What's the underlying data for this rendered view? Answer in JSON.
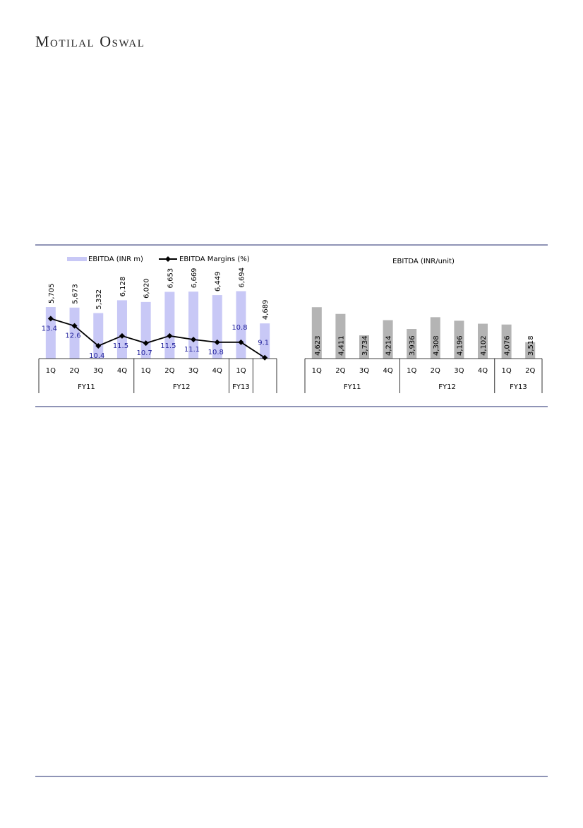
{
  "header": {
    "logo": "Motilal Oswal"
  },
  "chart_data": [
    {
      "type": "combo",
      "groups": [
        {
          "name": "FY11",
          "categories": [
            "1Q",
            "2Q",
            "3Q",
            "4Q"
          ]
        },
        {
          "name": "FY12",
          "categories": [
            "1Q",
            "2Q",
            "3Q",
            "4Q"
          ]
        },
        {
          "name": "FY13",
          "categories": [
            "1Q"
          ]
        },
        {
          "name": null,
          "categories": [
            null
          ]
        }
      ],
      "series": [
        {
          "name": "EBITDA (INR m)",
          "type": "bar",
          "color": "#c8c8f6",
          "values": [
            5705,
            5673,
            5332,
            6128,
            6020,
            6653,
            6669,
            6449,
            6694,
            4689
          ],
          "value_labels": [
            "5,705",
            "5,673",
            "5,332",
            "6,128",
            "6,020",
            "6,653",
            "6,669",
            "6,449",
            "6,694",
            "4,689"
          ]
        },
        {
          "name": "EBITDA Margins (%)",
          "type": "line",
          "axis": "y2",
          "color": "#000000",
          "values": [
            13.4,
            12.6,
            10.4,
            11.5,
            10.7,
            11.5,
            11.1,
            10.8,
            10.8,
            9.1
          ]
        }
      ],
      "ylim": [
        2500,
        9000
      ],
      "y2lim": [
        9,
        20.5
      ],
      "legend": "top"
    },
    {
      "type": "bar",
      "title": "EBITDA (INR/unit)",
      "groups": [
        {
          "name": "FY11",
          "categories": [
            "1Q",
            "2Q",
            "3Q",
            "4Q"
          ]
        },
        {
          "name": "FY12",
          "categories": [
            "1Q",
            "2Q",
            "3Q",
            "4Q"
          ]
        },
        {
          "name": "FY13",
          "categories": [
            "1Q",
            "2Q"
          ]
        }
      ],
      "values": [
        4623,
        4411,
        3734,
        4214,
        3936,
        4308,
        4196,
        4102,
        4076,
        3518
      ],
      "value_labels": [
        "4,623",
        "4,411",
        "3,734",
        "4,214",
        "3,936",
        "4,308",
        "4,196",
        "4,102",
        "4,076",
        "3,518"
      ],
      "color": "#b4b4b4",
      "ylim": [
        3000,
        6300
      ]
    }
  ]
}
